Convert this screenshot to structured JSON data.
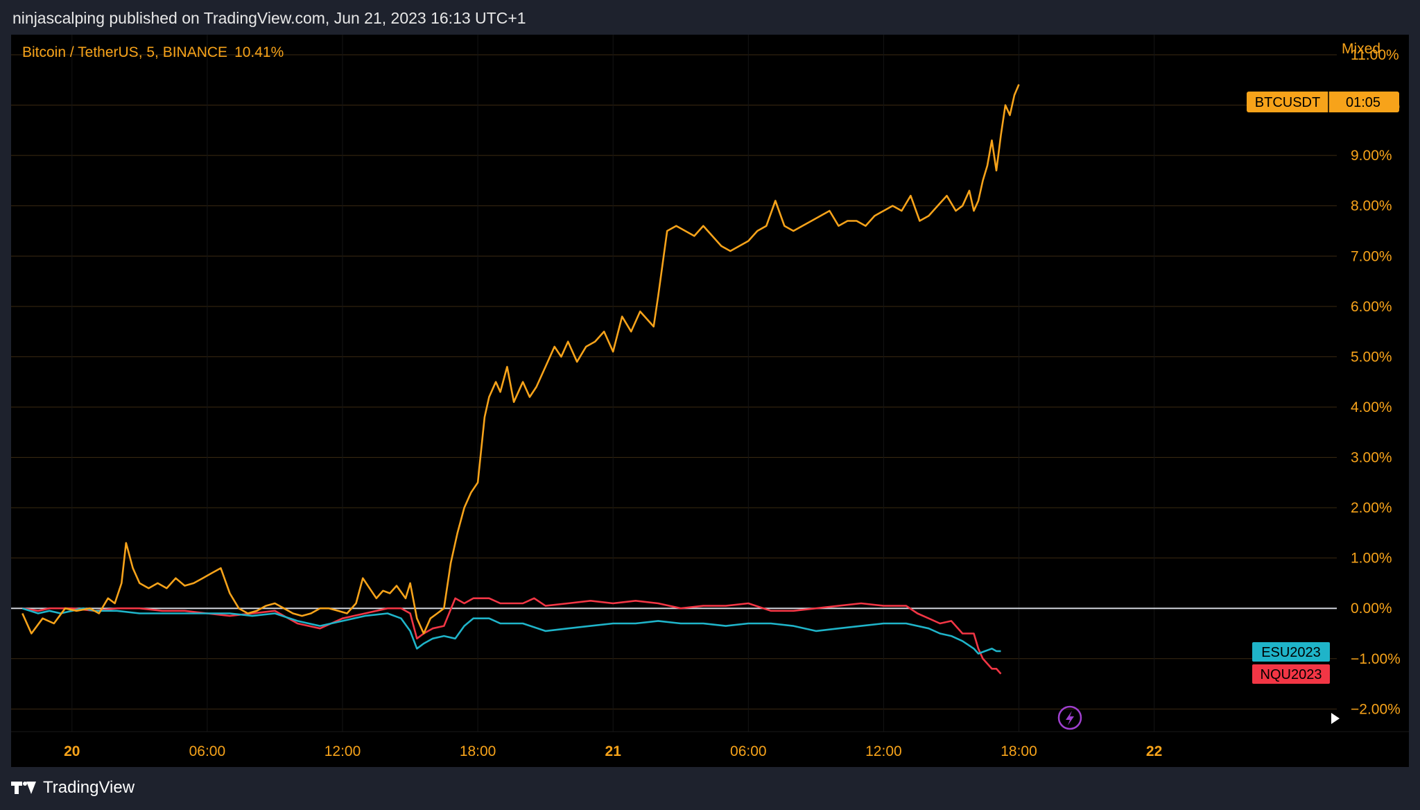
{
  "header": {
    "published": "ninjascalping published on TradingView.com, Jun 21, 2023 16:13 UTC+1"
  },
  "legend": {
    "symbol": "Bitcoin / TetherUS, 5, BINANCE",
    "change": "10.41%"
  },
  "scale_mode": "Mixed",
  "footer": {
    "brand": "TradingView"
  },
  "colors": {
    "btc": "#f7a31a",
    "es": "#1fb4c9",
    "nq": "#f23645",
    "zero_line": "#d1d4dc",
    "grid": "#3b2a12",
    "axis_text": "#f7a31a",
    "background": "#000000"
  },
  "chart_data": {
    "type": "line",
    "x_unit": "hours since Jun 20 00:00",
    "xlim": [
      -2.7,
      56.1
    ],
    "ylim": [
      -2.45,
      11.4
    ],
    "y_ticks": [
      11,
      10,
      9,
      8,
      7,
      6,
      5,
      4,
      3,
      2,
      1,
      0,
      -1,
      -2
    ],
    "y_tick_labels": [
      "11.00%",
      "10.00%",
      "9.00%",
      "8.00%",
      "7.00%",
      "6.00%",
      "5.00%",
      "4.00%",
      "3.00%",
      "2.00%",
      "1.00%",
      "0.00%",
      "−1.00%",
      "−2.00%"
    ],
    "x_ticks": [
      0,
      6,
      12,
      18,
      24,
      30,
      36,
      42,
      48
    ],
    "x_tick_labels": [
      "20",
      "06:00",
      "12:00",
      "18:00",
      "21",
      "06:00",
      "12:00",
      "18:00",
      "22"
    ],
    "x_tick_bold": [
      true,
      false,
      false,
      false,
      true,
      false,
      false,
      false,
      true
    ],
    "series": [
      {
        "name": "BTCUSDT",
        "badge_text": "01:05",
        "x": [
          -2.2,
          -1.8,
          -1.3,
          -0.8,
          -0.3,
          0.2,
          0.8,
          1.2,
          1.6,
          1.9,
          2.2,
          2.4,
          2.7,
          3.0,
          3.4,
          3.8,
          4.2,
          4.6,
          5.0,
          5.4,
          5.8,
          6.2,
          6.6,
          7.0,
          7.4,
          7.8,
          8.2,
          8.6,
          9.0,
          9.4,
          9.8,
          10.2,
          10.6,
          11.0,
          11.4,
          11.8,
          12.2,
          12.6,
          12.9,
          13.2,
          13.5,
          13.8,
          14.1,
          14.4,
          14.8,
          15.0,
          15.3,
          15.6,
          15.9,
          16.2,
          16.5,
          16.8,
          17.1,
          17.4,
          17.7,
          18.0,
          18.3,
          18.5,
          18.8,
          19.0,
          19.3,
          19.6,
          20.0,
          20.3,
          20.6,
          21.0,
          21.4,
          21.7,
          22.0,
          22.4,
          22.8,
          23.2,
          23.6,
          24.0,
          24.4,
          24.8,
          25.2,
          25.6,
          25.8,
          26.0,
          26.4,
          26.8,
          27.2,
          27.6,
          28.0,
          28.4,
          28.8,
          29.2,
          29.6,
          30.0,
          30.4,
          30.8,
          31.2,
          31.6,
          32.0,
          32.4,
          32.8,
          33.2,
          33.6,
          34.0,
          34.4,
          34.8,
          35.2,
          35.6,
          36.0,
          36.4,
          36.8,
          37.2,
          37.6,
          38.0,
          38.4,
          38.8,
          39.2,
          39.5,
          39.8,
          40.0,
          40.2,
          40.4,
          40.6,
          40.8,
          41.0,
          41.2,
          41.4,
          41.6,
          41.8,
          42.0
        ],
        "values": [
          -0.1,
          -0.5,
          -0.2,
          -0.3,
          0.0,
          -0.05,
          0.0,
          -0.1,
          0.2,
          0.1,
          0.5,
          1.3,
          0.8,
          0.5,
          0.4,
          0.5,
          0.4,
          0.6,
          0.45,
          0.5,
          0.6,
          0.7,
          0.8,
          0.3,
          0.0,
          -0.1,
          -0.05,
          0.05,
          0.1,
          0.0,
          -0.1,
          -0.15,
          -0.1,
          0.0,
          0.0,
          -0.05,
          -0.1,
          0.1,
          0.6,
          0.4,
          0.2,
          0.35,
          0.3,
          0.45,
          0.2,
          0.5,
          -0.2,
          -0.5,
          -0.2,
          -0.1,
          0.0,
          0.9,
          1.5,
          2.0,
          2.3,
          2.5,
          3.8,
          4.2,
          4.5,
          4.3,
          4.8,
          4.1,
          4.5,
          4.2,
          4.4,
          4.8,
          5.2,
          5.0,
          5.3,
          4.9,
          5.2,
          5.3,
          5.5,
          5.1,
          5.8,
          5.5,
          5.9,
          5.7,
          5.6,
          6.2,
          7.5,
          7.6,
          7.5,
          7.4,
          7.6,
          7.4,
          7.2,
          7.1,
          7.2,
          7.3,
          7.5,
          7.6,
          8.1,
          7.6,
          7.5,
          7.6,
          7.7,
          7.8,
          7.9,
          7.6,
          7.7,
          7.7,
          7.6,
          7.8,
          7.9,
          8.0,
          7.9,
          8.2,
          7.7,
          7.8,
          8.0,
          8.2,
          7.9,
          8.0,
          8.3,
          7.9,
          8.1,
          8.5,
          8.8,
          9.3,
          8.7,
          9.4,
          10.0,
          9.8,
          10.2,
          10.41
        ]
      },
      {
        "name": "ESU2023",
        "x": [
          -2.2,
          -1.5,
          -1.0,
          -0.5,
          0.0,
          0.5,
          1.0,
          2.0,
          3.0,
          4.0,
          5.0,
          6.0,
          7.0,
          8.0,
          9.0,
          10.0,
          11.0,
          12.0,
          13.0,
          14.0,
          14.6,
          15.0,
          15.3,
          15.6,
          16.0,
          16.5,
          17.0,
          17.4,
          17.8,
          18.5,
          19.0,
          20.0,
          21.0,
          22.0,
          23.0,
          24.0,
          25.0,
          26.0,
          27.0,
          28.0,
          29.0,
          30.0,
          31.0,
          32.0,
          33.0,
          34.0,
          35.0,
          36.0,
          37.0,
          38.0,
          38.5,
          39.0,
          39.5,
          40.0,
          40.2,
          40.5,
          40.8,
          41.0,
          41.2
        ],
        "values": [
          0.0,
          -0.1,
          -0.05,
          -0.1,
          -0.05,
          0.0,
          -0.05,
          -0.05,
          -0.1,
          -0.1,
          -0.1,
          -0.1,
          -0.1,
          -0.15,
          -0.1,
          -0.25,
          -0.35,
          -0.25,
          -0.15,
          -0.1,
          -0.2,
          -0.45,
          -0.8,
          -0.7,
          -0.6,
          -0.55,
          -0.6,
          -0.35,
          -0.2,
          -0.2,
          -0.3,
          -0.3,
          -0.45,
          -0.4,
          -0.35,
          -0.3,
          -0.3,
          -0.25,
          -0.3,
          -0.3,
          -0.35,
          -0.3,
          -0.3,
          -0.35,
          -0.45,
          -0.4,
          -0.35,
          -0.3,
          -0.3,
          -0.4,
          -0.5,
          -0.55,
          -0.65,
          -0.8,
          -0.9,
          -0.85,
          -0.8,
          -0.85,
          -0.85
        ]
      },
      {
        "name": "NQU2023",
        "x": [
          -2.2,
          -1.5,
          -1.0,
          0.0,
          1.0,
          2.0,
          3.0,
          4.0,
          5.0,
          6.0,
          7.0,
          8.0,
          9.0,
          10.0,
          11.0,
          12.0,
          13.0,
          14.0,
          14.6,
          15.0,
          15.3,
          15.6,
          16.0,
          16.5,
          17.0,
          17.4,
          17.8,
          18.5,
          19.0,
          20.0,
          20.5,
          21.0,
          22.0,
          23.0,
          24.0,
          25.0,
          26.0,
          27.0,
          28.0,
          29.0,
          30.0,
          31.0,
          32.0,
          33.0,
          34.0,
          35.0,
          36.0,
          37.0,
          37.5,
          38.0,
          38.5,
          39.0,
          39.5,
          40.0,
          40.2,
          40.4,
          40.6,
          40.8,
          41.0,
          41.2
        ],
        "values": [
          0.0,
          -0.05,
          0.0,
          0.0,
          -0.05,
          0.0,
          0.0,
          -0.05,
          -0.05,
          -0.1,
          -0.15,
          -0.1,
          -0.05,
          -0.3,
          -0.4,
          -0.2,
          -0.1,
          0.0,
          0.0,
          -0.1,
          -0.6,
          -0.5,
          -0.4,
          -0.35,
          0.2,
          0.1,
          0.2,
          0.2,
          0.1,
          0.1,
          0.2,
          0.05,
          0.1,
          0.15,
          0.1,
          0.15,
          0.1,
          0.0,
          0.05,
          0.05,
          0.1,
          -0.05,
          -0.05,
          0.0,
          0.05,
          0.1,
          0.05,
          0.05,
          -0.1,
          -0.2,
          -0.3,
          -0.25,
          -0.5,
          -0.5,
          -0.8,
          -1.0,
          -1.1,
          -1.2,
          -1.2,
          -1.3
        ]
      }
    ]
  }
}
